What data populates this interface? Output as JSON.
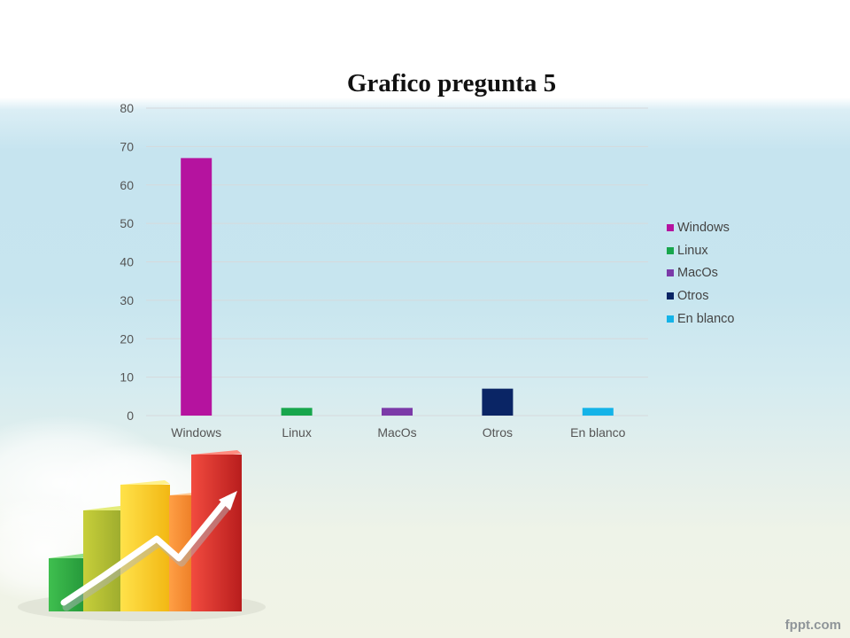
{
  "slide": {
    "branding": "fppt.com",
    "colors": {
      "bg_top": "#ffffff",
      "sky": "#c6e4ef",
      "bottom": "#f1f3e6"
    }
  },
  "decoration": {
    "icon": "growth-bar-chart-3d-icon",
    "description_visible": false
  },
  "chart_data": {
    "type": "bar",
    "title": "Grafico pregunta 5",
    "categories": [
      "Windows",
      "Linux",
      "MacOs",
      "Otros",
      "En blanco"
    ],
    "values": [
      67,
      2,
      2,
      7,
      2
    ],
    "colors": [
      "#b5139f",
      "#17a64c",
      "#7b3aa8",
      "#0a2565",
      "#14b3e8"
    ],
    "ylim": [
      0,
      80
    ],
    "yticks": [
      0,
      10,
      20,
      30,
      40,
      50,
      60,
      70,
      80
    ],
    "xlabel": "",
    "ylabel": "",
    "grid": true,
    "legend": {
      "placement": "right",
      "entries": [
        "Windows",
        "Linux",
        "MacOs",
        "Otros",
        "En blanco"
      ]
    }
  }
}
